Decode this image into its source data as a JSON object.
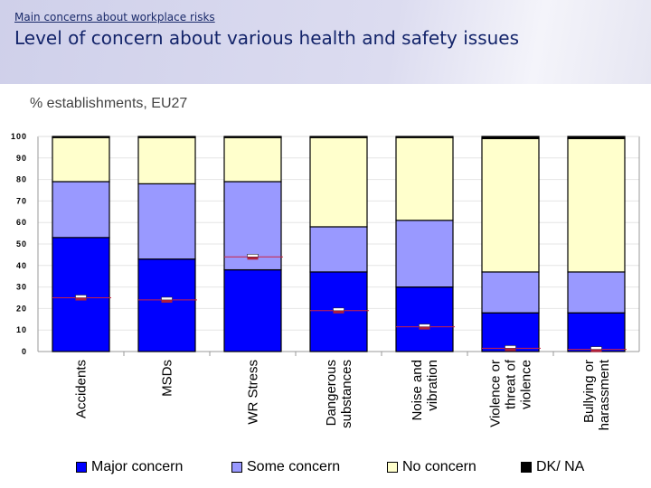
{
  "header": {
    "kicker": "Main concerns about workplace risks",
    "title": "Level of concern about various health and safety issues"
  },
  "subtitle": "% establishments, EU27",
  "chart_data": {
    "type": "bar",
    "stacked": true,
    "title": "Level of concern about various health and safety issues",
    "ylabel": "% establishments, EU27",
    "ylim": [
      0,
      100
    ],
    "yticks": [
      "0",
      "10",
      "20",
      "30",
      "40",
      "50",
      "60",
      "70",
      "80",
      "90",
      "100"
    ],
    "grid": true,
    "legend_position": "bottom",
    "categories": [
      [
        "Accidents"
      ],
      [
        "MSDs"
      ],
      [
        "WR Stress"
      ],
      [
        "Dangerous",
        "substances"
      ],
      [
        "Noise and",
        "vibration"
      ],
      [
        "Violence or",
        "threat of",
        "violence"
      ],
      [
        "Bullying or",
        "harassment"
      ]
    ],
    "series": [
      {
        "name": "Major concern",
        "color": "#0000ff",
        "values": [
          53,
          43,
          38,
          37,
          30,
          18,
          18
        ]
      },
      {
        "name": "Some concern",
        "color": "#9999ff",
        "values": [
          26,
          35,
          41,
          21,
          31,
          19,
          19
        ]
      },
      {
        "name": "No concern",
        "color": "#ffffcc",
        "values": [
          20.5,
          21.5,
          20.5,
          41.5,
          38.5,
          62,
          62
        ]
      },
      {
        "name": "DK/ NA",
        "color": "#000000",
        "values": [
          0.5,
          0.5,
          0.5,
          0.5,
          0.5,
          1,
          1
        ]
      }
    ],
    "markers": {
      "color": "#cc2244",
      "values": [
        25,
        24,
        44,
        19,
        11.5,
        1.5,
        1
      ]
    }
  }
}
